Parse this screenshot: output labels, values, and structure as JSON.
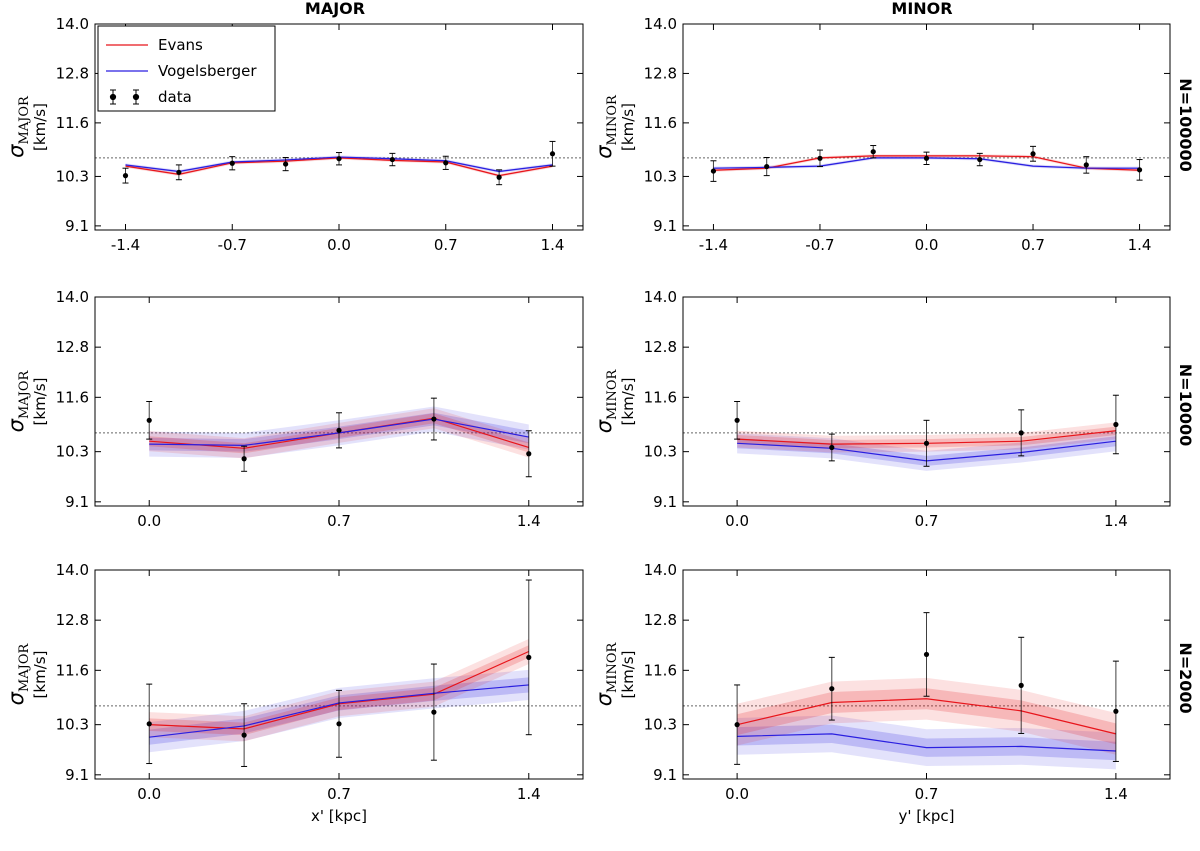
{
  "colors": {
    "evans": "#e8151b",
    "vogelsberger": "#2a1fe0",
    "data": "#000000",
    "ref": "#666666"
  },
  "chart_data": {
    "type": "line",
    "column_titles": [
      "MAJOR",
      "MINOR"
    ],
    "row_labels": [
      "N=100000",
      "N=10000",
      "N=2000"
    ],
    "legend": [
      "Evans",
      "Vogelsberger",
      "data"
    ],
    "ylabel_symbol": "σ",
    "ylabel_units": "[km/s]",
    "ylabel_sub": [
      "MAJOR",
      "MINOR"
    ],
    "xlabels": [
      "x' [kpc]",
      "y' [kpc]"
    ],
    "ylim": [
      9.0,
      14.0
    ],
    "yticks": [
      9.1,
      10.3,
      11.6,
      12.8,
      14.0
    ],
    "ytick_labels": [
      "9.1",
      "10.3",
      "11.6",
      "12.8",
      "14.0"
    ],
    "reference_line": 10.75,
    "panels": [
      {
        "row": 0,
        "col": 0,
        "xlim": [
          -1.6,
          1.6
        ],
        "xticks": [
          -1.4,
          -0.7,
          0.0,
          0.7,
          1.4
        ],
        "xtick_labels": [
          "-1.4",
          "-0.7",
          "0.0",
          "0.7",
          "1.4"
        ],
        "x": [
          -1.4,
          -1.05,
          -0.7,
          -0.35,
          0.0,
          0.35,
          0.7,
          1.05,
          1.4
        ],
        "evans": [
          10.55,
          10.35,
          10.63,
          10.67,
          10.75,
          10.69,
          10.65,
          10.32,
          10.55
        ],
        "evans_band": 0.02,
        "vogelsberger": [
          10.58,
          10.42,
          10.65,
          10.7,
          10.77,
          10.73,
          10.68,
          10.42,
          10.58
        ],
        "vogelsberger_band": 0.02,
        "data": [
          10.32,
          10.4,
          10.62,
          10.6,
          10.73,
          10.71,
          10.63,
          10.28,
          10.85
        ],
        "data_err": [
          0.18,
          0.18,
          0.16,
          0.16,
          0.15,
          0.15,
          0.16,
          0.18,
          0.3
        ]
      },
      {
        "row": 0,
        "col": 1,
        "xlim": [
          -1.6,
          1.6
        ],
        "xticks": [
          -1.4,
          -0.7,
          0.0,
          0.7,
          1.4
        ],
        "xtick_labels": [
          "-1.4",
          "-0.7",
          "0.0",
          "0.7",
          "1.4"
        ],
        "x": [
          -1.4,
          -1.05,
          -0.7,
          -0.35,
          0.0,
          0.35,
          0.7,
          1.05,
          1.4
        ],
        "evans": [
          10.45,
          10.5,
          10.75,
          10.8,
          10.8,
          10.8,
          10.78,
          10.5,
          10.45
        ],
        "evans_band": 0.02,
        "vogelsberger": [
          10.5,
          10.52,
          10.55,
          10.75,
          10.75,
          10.73,
          10.55,
          10.5,
          10.5
        ],
        "vogelsberger_band": 0.02,
        "data": [
          10.43,
          10.54,
          10.74,
          10.9,
          10.74,
          10.71,
          10.85,
          10.58,
          10.46
        ],
        "data_err": [
          0.25,
          0.22,
          0.2,
          0.15,
          0.15,
          0.15,
          0.18,
          0.2,
          0.25
        ]
      },
      {
        "row": 1,
        "col": 0,
        "xlim": [
          -0.2,
          1.6
        ],
        "xticks": [
          0.0,
          0.7,
          1.4
        ],
        "xtick_labels": [
          "0.0",
          "0.7",
          "1.4"
        ],
        "x": [
          0.0,
          0.35,
          0.7,
          1.05,
          1.4
        ],
        "evans": [
          10.55,
          10.38,
          10.75,
          11.1,
          10.4
        ],
        "evans_band": 0.12,
        "vogelsberger": [
          10.48,
          10.45,
          10.75,
          11.08,
          10.65
        ],
        "vogelsberger_band": 0.15,
        "data": [
          11.05,
          10.13,
          10.81,
          11.08,
          10.25
        ],
        "data_err": [
          0.45,
          0.3,
          0.42,
          0.5,
          0.55
        ]
      },
      {
        "row": 1,
        "col": 1,
        "xlim": [
          -0.2,
          1.6
        ],
        "xticks": [
          0.0,
          0.7,
          1.4
        ],
        "xtick_labels": [
          "0.0",
          "0.7",
          "1.4"
        ],
        "x": [
          0.0,
          0.35,
          0.7,
          1.05,
          1.4
        ],
        "evans": [
          10.6,
          10.48,
          10.5,
          10.55,
          10.8
        ],
        "evans_band": 0.1,
        "vogelsberger": [
          10.5,
          10.38,
          10.08,
          10.28,
          10.55
        ],
        "vogelsberger_band": 0.12,
        "data": [
          11.05,
          10.4,
          10.5,
          10.75,
          10.95
        ],
        "data_err": [
          0.45,
          0.32,
          0.55,
          0.55,
          0.7
        ]
      },
      {
        "row": 2,
        "col": 0,
        "xlim": [
          -0.2,
          1.6
        ],
        "xticks": [
          0.0,
          0.7,
          1.4
        ],
        "xtick_labels": [
          "0.0",
          "0.7",
          "1.4"
        ],
        "x": [
          0.0,
          0.35,
          0.7,
          1.05,
          1.4
        ],
        "evans": [
          10.3,
          10.2,
          10.8,
          11.03,
          12.05
        ],
        "evans_band": 0.15,
        "vogelsberger": [
          10.0,
          10.27,
          10.82,
          11.05,
          11.25
        ],
        "vogelsberger_band": 0.18,
        "data": [
          10.32,
          10.05,
          10.32,
          10.6,
          11.91
        ],
        "data_err": [
          0.95,
          0.75,
          0.8,
          1.15,
          1.85
        ]
      },
      {
        "row": 2,
        "col": 1,
        "xlim": [
          -0.2,
          1.6
        ],
        "xticks": [
          0.0,
          0.7,
          1.4
        ],
        "xtick_labels": [
          "0.0",
          "0.7",
          "1.4"
        ],
        "x": [
          0.0,
          0.35,
          0.7,
          1.05,
          1.4
        ],
        "evans": [
          10.3,
          10.83,
          10.92,
          10.63,
          10.08
        ],
        "evans_band": 0.25,
        "vogelsberger": [
          10.02,
          10.08,
          9.75,
          9.78,
          9.67
        ],
        "vogelsberger_band": 0.22,
        "data": [
          10.3,
          11.16,
          11.98,
          11.24,
          10.62
        ],
        "data_err": [
          0.95,
          0.75,
          1.0,
          1.15,
          1.2
        ]
      }
    ]
  }
}
